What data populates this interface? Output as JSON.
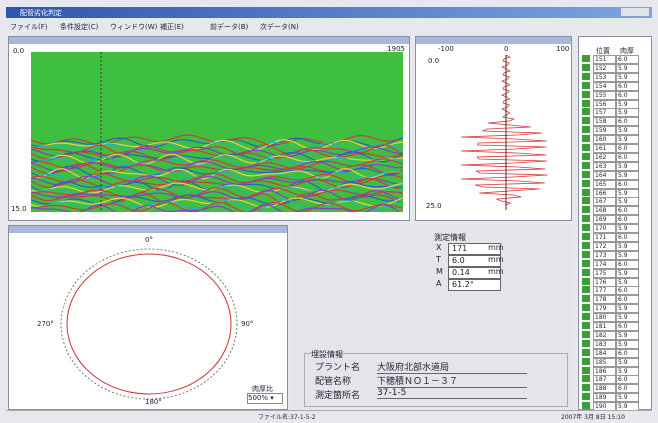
{
  "window": {
    "title": "配管劣化判定"
  },
  "menu": [
    "ファイル(F)",
    "条件設定(C)",
    "ウィンドウ(W)",
    "補正(E)",
    "前データ(B)",
    "次データ(N)"
  ],
  "scan_panel": {
    "y_top": "0.0",
    "y_bottom": "15.0",
    "x_right": "1905"
  },
  "profile_panel": {
    "x_labels": [
      "-100",
      "0",
      "100"
    ],
    "y_top": "0.0",
    "y_bottom": "25.0"
  },
  "thickness_table": {
    "headers": [
      "位置",
      "肉厚"
    ],
    "rows": [
      [
        "151",
        "6.0"
      ],
      [
        "152",
        "5.9"
      ],
      [
        "153",
        "5.9"
      ],
      [
        "154",
        "6.0"
      ],
      [
        "155",
        "6.0"
      ],
      [
        "156",
        "5.9"
      ],
      [
        "157",
        "5.9"
      ],
      [
        "158",
        "6.0"
      ],
      [
        "159",
        "5.9"
      ],
      [
        "160",
        "5.9"
      ],
      [
        "161",
        "6.0"
      ],
      [
        "162",
        "6.0"
      ],
      [
        "163",
        "5.9"
      ],
      [
        "164",
        "5.9"
      ],
      [
        "165",
        "6.0"
      ],
      [
        "166",
        "5.9"
      ],
      [
        "167",
        "5.9"
      ],
      [
        "168",
        "6.0"
      ],
      [
        "169",
        "6.0"
      ],
      [
        "170",
        "5.9"
      ],
      [
        "171",
        "6.0"
      ],
      [
        "172",
        "5.9"
      ],
      [
        "173",
        "5.9"
      ],
      [
        "174",
        "6.0"
      ],
      [
        "175",
        "5.9"
      ],
      [
        "176",
        "5.9"
      ],
      [
        "177",
        "6.0"
      ],
      [
        "178",
        "6.0"
      ],
      [
        "179",
        "5.9"
      ],
      [
        "180",
        "5.9"
      ],
      [
        "181",
        "6.0"
      ],
      [
        "182",
        "5.9"
      ],
      [
        "183",
        "5.9"
      ],
      [
        "184",
        "6.0"
      ],
      [
        "185",
        "5.9"
      ],
      [
        "186",
        "5.9"
      ],
      [
        "187",
        "6.0"
      ],
      [
        "188",
        "6.0"
      ],
      [
        "189",
        "5.9"
      ],
      [
        "190",
        "5.9"
      ]
    ]
  },
  "measurement": {
    "title": "測定情報",
    "rows": [
      [
        "X",
        "171",
        "mm"
      ],
      [
        "T",
        "6.0",
        "mm"
      ],
      [
        "M",
        "0.14",
        "mm"
      ],
      [
        "A",
        "61.2°"
      ]
    ]
  },
  "section": {
    "angles": [
      "0°",
      "90°",
      "180°",
      "270°"
    ],
    "ratio_label": "肉厚比",
    "ratio_value": "500%"
  },
  "burial": {
    "title": "埋設情報",
    "rows": [
      [
        "プラント名",
        "大阪府北部水道局"
      ],
      [
        "配管名称",
        "下穂積ＮＯ１－３７"
      ],
      [
        "測定箇所名",
        "37-1-5"
      ]
    ]
  },
  "status": {
    "file": "ファイル名:37-1-5-2",
    "datetime": "2007年 3月 8日 15:10"
  }
}
